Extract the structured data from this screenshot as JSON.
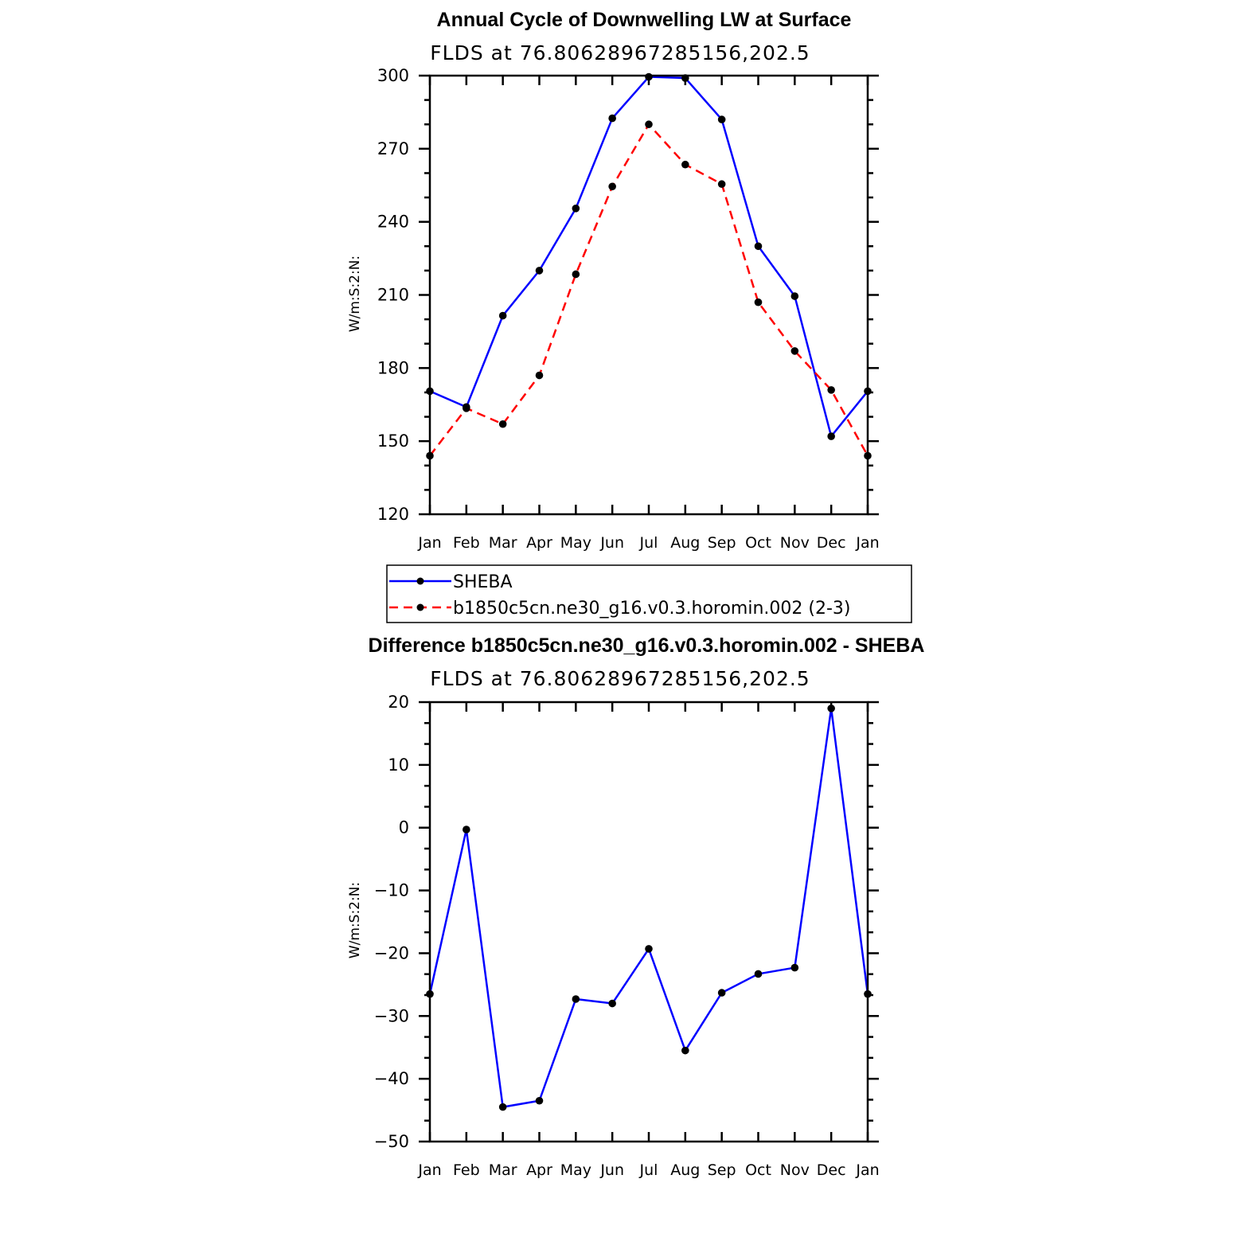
{
  "chart_data": [
    {
      "type": "line",
      "title": "Annual Cycle of Downwelling LW at Surface",
      "subtitle": "FLDS at 76.80628967285156,202.5",
      "xlabel": "",
      "ylabel": "W/m:S:2:N:",
      "categories": [
        "Jan",
        "Feb",
        "Mar",
        "Apr",
        "May",
        "Jun",
        "Jul",
        "Aug",
        "Sep",
        "Oct",
        "Nov",
        "Dec",
        "Jan"
      ],
      "ylim": [
        120,
        300
      ],
      "yticks": [
        120,
        150,
        180,
        210,
        240,
        270,
        300
      ],
      "series": [
        {
          "name": "SHEBA",
          "color": "#0000ff",
          "dash": "solid",
          "values": [
            170.5,
            164,
            201.5,
            220,
            245.5,
            282.5,
            299.5,
            299,
            282,
            230,
            209.5,
            152,
            170.5
          ]
        },
        {
          "name": "b1850c5cn.ne30_g16.v0.3.horomin.002 (2-3)",
          "color": "#ff0000",
          "dash": "dashed",
          "values": [
            144,
            163.5,
            157,
            177,
            218.5,
            254.5,
            280,
            263.5,
            255.5,
            207,
            187,
            171,
            144
          ]
        }
      ],
      "legend": "below"
    },
    {
      "type": "line",
      "title": "Difference b1850c5cn.ne30_g16.v0.3.horomin.002 - SHEBA",
      "subtitle": "FLDS at 76.80628967285156,202.5",
      "xlabel": "",
      "ylabel": "W/m:S:2:N:",
      "categories": [
        "Jan",
        "Feb",
        "Mar",
        "Apr",
        "May",
        "Jun",
        "Jul",
        "Aug",
        "Sep",
        "Oct",
        "Nov",
        "Dec",
        "Jan"
      ],
      "ylim": [
        -50,
        20
      ],
      "yticks": [
        -50,
        -40,
        -30,
        -20,
        -10,
        0,
        10,
        20
      ],
      "ytick_labels": [
        "−50",
        "−40",
        "−30",
        "−20",
        "−10",
        "0",
        "10",
        "20"
      ],
      "series": [
        {
          "name": "Difference",
          "color": "#0000ff",
          "dash": "solid",
          "values": [
            -26.5,
            -0.3,
            -44.5,
            -43.5,
            -27.3,
            -28,
            -19.3,
            -35.5,
            -26.3,
            -23.3,
            -22.3,
            19,
            -26.5
          ]
        }
      ]
    }
  ]
}
